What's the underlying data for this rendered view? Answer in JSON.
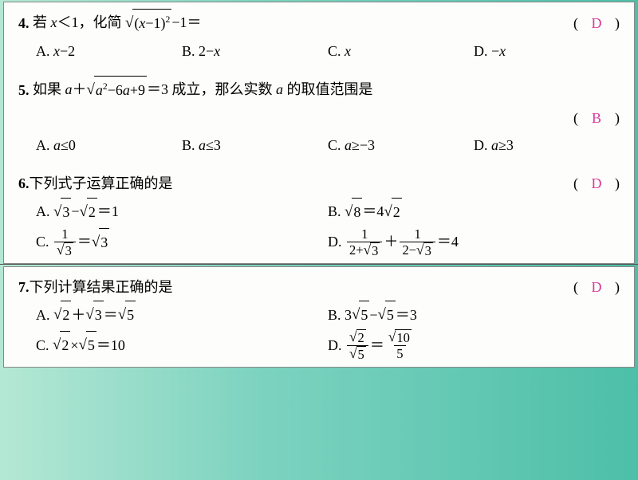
{
  "questions": [
    {
      "num": "4.",
      "stem_prefix": "若 ",
      "stem_math": "x＜1，化简 √((x−1)²)−1＝",
      "answer": "D",
      "option_layout": "four",
      "options": [
        {
          "label": "A.",
          "text": "x−2"
        },
        {
          "label": "B.",
          "text": "2−x"
        },
        {
          "label": "C.",
          "text": "x"
        },
        {
          "label": "D.",
          "text": "−x"
        }
      ]
    },
    {
      "num": "5.",
      "stem": "如果 a+√(a²−6a+9)=3 成立，那么实数 a 的取值范围是",
      "answer": "B",
      "option_layout": "four",
      "options": [
        {
          "label": "A.",
          "text": "a≤0"
        },
        {
          "label": "B.",
          "text": "a≤3"
        },
        {
          "label": "C.",
          "text": "a≥−3"
        },
        {
          "label": "D.",
          "text": "a≥3"
        }
      ]
    },
    {
      "num": "6.",
      "stem": "下列式子运算正确的是",
      "answer": "D",
      "option_layout": "two",
      "options_row1": [
        {
          "label": "A.",
          "text": "√3−√2=1"
        },
        {
          "label": "B.",
          "text": "√8=4√2"
        }
      ],
      "options_row2": [
        {
          "label": "C.",
          "text": "1/√3=√3"
        },
        {
          "label": "D.",
          "text": "1/(2+√3)+1/(2−√3)=4"
        }
      ]
    },
    {
      "num": "7.",
      "stem": "下列计算结果正确的是",
      "answer": "D",
      "option_layout": "two",
      "options_row1": [
        {
          "label": "A.",
          "text": "√2+√3=√5"
        },
        {
          "label": "B.",
          "text": "3√5−√5=3"
        }
      ],
      "options_row2": [
        {
          "label": "C.",
          "text": "√2×√5=10"
        },
        {
          "label": "D.",
          "text": "√2/√5=√10/5"
        }
      ]
    }
  ],
  "colors": {
    "answer": "#d83a9c",
    "text": "#000000",
    "bg_box": "#fdfdfb"
  },
  "fonts": {
    "base_size": 18,
    "family": "SimSun, Times New Roman, serif"
  }
}
